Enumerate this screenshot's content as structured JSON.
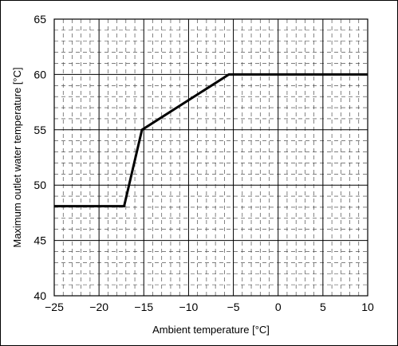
{
  "chart_data": {
    "type": "line",
    "title": "",
    "xlabel": "Ambient temperature [°C]",
    "ylabel": "Maximum outlet water temperature [°C]",
    "xlim": [
      -25,
      10
    ],
    "ylim": [
      40,
      65
    ],
    "x_ticks": [
      -25,
      -20,
      -15,
      -10,
      -5,
      0,
      5,
      10
    ],
    "y_ticks": [
      40,
      45,
      50,
      55,
      60,
      65
    ],
    "x_tick_labels": [
      "−25",
      "−20",
      "−15",
      "−10",
      "−5",
      "0",
      "5",
      "10"
    ],
    "y_tick_labels": [
      "40",
      "45",
      "50",
      "55",
      "60",
      "65"
    ],
    "grid": true,
    "series": [
      {
        "x": [
          -25,
          -17.2,
          -15.2,
          -5.5,
          10
        ],
        "y": [
          48.1,
          48.1,
          55,
          60,
          60
        ]
      }
    ],
    "line_color": "#000000"
  }
}
